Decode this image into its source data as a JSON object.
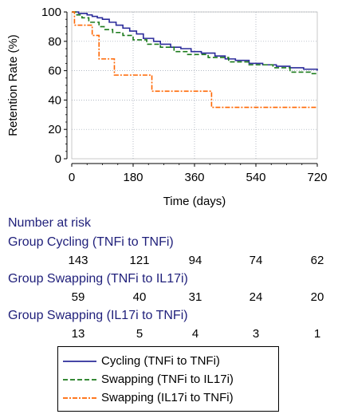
{
  "chart_data": {
    "type": "line",
    "step": true,
    "xlabel": "Time (days)",
    "ylabel": "Retention Rate (%)",
    "xlim": [
      0,
      720
    ],
    "ylim": [
      0,
      100
    ],
    "xticks": [
      0,
      180,
      360,
      540,
      720
    ],
    "yticks": [
      0,
      20,
      40,
      60,
      80,
      100
    ],
    "grid": true,
    "legend_position": "bottom",
    "series": [
      {
        "name": "Cycling (TNFi to TNFi)",
        "color": "#2b2b9a",
        "style": "solid",
        "x": [
          0,
          20,
          45,
          60,
          75,
          90,
          110,
          130,
          150,
          170,
          190,
          210,
          240,
          260,
          290,
          320,
          350,
          380,
          420,
          450,
          480,
          520,
          560,
          600,
          640,
          680,
          720
        ],
        "y": [
          100,
          99,
          98,
          97,
          96,
          95,
          93,
          91,
          89,
          87,
          85,
          82,
          80,
          78,
          76,
          75,
          73,
          72,
          70,
          68,
          67,
          65,
          64,
          63,
          62,
          61,
          60
        ]
      },
      {
        "name": "Swapping (TNFi to IL17i)",
        "color": "#1a7a1a",
        "style": "dashed",
        "x": [
          0,
          15,
          30,
          50,
          80,
          95,
          120,
          150,
          180,
          220,
          260,
          300,
          340,
          400,
          460,
          520,
          590,
          640,
          700,
          720
        ],
        "y": [
          100,
          98,
          96,
          93,
          90,
          88,
          86,
          84,
          81,
          78,
          76,
          73,
          71,
          69,
          66,
          64,
          62,
          59,
          58,
          58
        ]
      },
      {
        "name": "Swapping (IL17i to TNFi)",
        "color": "#ff6600",
        "style": "dashdot",
        "x": [
          0,
          8,
          60,
          80,
          125,
          235,
          410,
          720
        ],
        "y": [
          100,
          91,
          84,
          68,
          57,
          46,
          35,
          35
        ]
      }
    ]
  },
  "risk_table": {
    "title": "Number at risk",
    "groups": [
      {
        "label": "Group Cycling (TNFi to TNFi)",
        "counts": [
          "143",
          "121",
          "94",
          "74",
          "62"
        ]
      },
      {
        "label": "Group Swapping (TNFi to IL17i)",
        "counts": [
          "59",
          "40",
          "31",
          "24",
          "20"
        ]
      },
      {
        "label": "Group Swapping (IL17i to TNFi)",
        "counts": [
          "13",
          "5",
          "4",
          "3",
          "1"
        ]
      }
    ]
  }
}
